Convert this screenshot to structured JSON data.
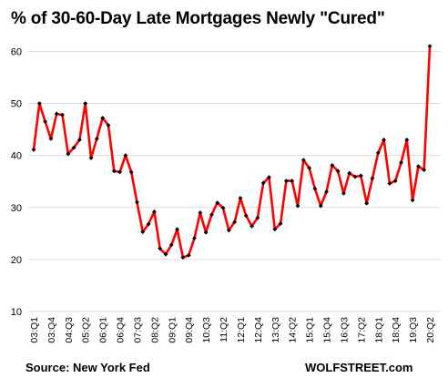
{
  "chart_data": {
    "type": "line",
    "title": "% of 30-60-Day Late Mortgages  Newly \"Cured\"",
    "xlabel": "",
    "ylabel": "",
    "ylim": [
      10,
      62
    ],
    "yticks": [
      10,
      20,
      30,
      40,
      50,
      60
    ],
    "grid": true,
    "legend": "none",
    "series_color": "#ff0000",
    "marker_color": "#000000",
    "x_tick_labels": [
      "03:Q1",
      "03:Q4",
      "04:Q3",
      "05:Q2",
      "06:Q1",
      "06:Q4",
      "07:Q3",
      "08:Q2",
      "09:Q1",
      "09:Q4",
      "10:Q3",
      "11:Q2",
      "12:Q1",
      "12:Q4",
      "13:Q3",
      "14:Q2",
      "15:Q1",
      "15:Q4",
      "16:Q3",
      "17:Q2",
      "18:Q1",
      "18:Q4",
      "19:Q3",
      "20:Q2"
    ],
    "x": [
      "03:Q1",
      "03:Q2",
      "03:Q3",
      "03:Q4",
      "04:Q1",
      "04:Q2",
      "04:Q3",
      "04:Q4",
      "05:Q1",
      "05:Q2",
      "05:Q3",
      "05:Q4",
      "06:Q1",
      "06:Q2",
      "06:Q3",
      "06:Q4",
      "07:Q1",
      "07:Q2",
      "07:Q3",
      "07:Q4",
      "08:Q1",
      "08:Q2",
      "08:Q3",
      "08:Q4",
      "09:Q1",
      "09:Q2",
      "09:Q3",
      "09:Q4",
      "10:Q1",
      "10:Q2",
      "10:Q3",
      "10:Q4",
      "11:Q1",
      "11:Q2",
      "11:Q3",
      "11:Q4",
      "12:Q1",
      "12:Q2",
      "12:Q3",
      "12:Q4",
      "13:Q1",
      "13:Q2",
      "13:Q3",
      "13:Q4",
      "14:Q1",
      "14:Q2",
      "14:Q3",
      "14:Q4",
      "15:Q1",
      "15:Q2",
      "15:Q3",
      "15:Q4",
      "16:Q1",
      "16:Q2",
      "16:Q3",
      "16:Q4",
      "17:Q1",
      "17:Q2",
      "17:Q3",
      "17:Q4",
      "18:Q1",
      "18:Q2",
      "18:Q3",
      "18:Q4",
      "19:Q1",
      "19:Q2",
      "19:Q3",
      "19:Q4",
      "20:Q1",
      "20:Q2"
    ],
    "series": [
      {
        "values": [
          41.1,
          50.0,
          46.5,
          43.2,
          48.0,
          47.8,
          40.3,
          41.5,
          43.0,
          50.0,
          39.5,
          43.2,
          47.2,
          45.8,
          37.0,
          36.8,
          40.0,
          36.8,
          31.0,
          25.3,
          26.8,
          29.2,
          22.1,
          21.0,
          22.8,
          25.8,
          20.4,
          20.8,
          24.1,
          29.0,
          25.2,
          28.6,
          30.9,
          29.9,
          25.6,
          27.2,
          31.8,
          28.4,
          26.4,
          28.0,
          34.7,
          35.8,
          25.8,
          26.9,
          35.1,
          35.1,
          30.3,
          39.1,
          37.6,
          33.6,
          30.3,
          33.0,
          38.1,
          37.0,
          32.7,
          36.6,
          35.9,
          36.1,
          30.8,
          35.6,
          40.5,
          43.0,
          34.6,
          35.1,
          38.6,
          43.0,
          31.4,
          37.9,
          37.2,
          61.0
        ]
      }
    ]
  },
  "footer": {
    "source": "Source: New York Fed",
    "watermark": "WOLFSTREET.com"
  }
}
